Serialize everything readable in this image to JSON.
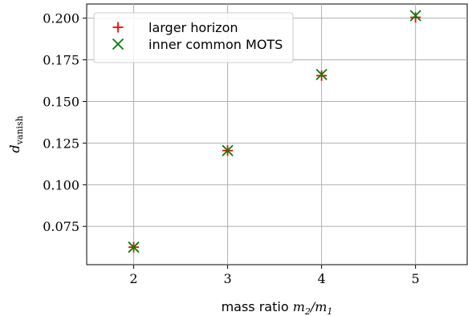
{
  "chart_data": {
    "type": "scatter",
    "title": "",
    "xlabel": {
      "text": "mass ratio ",
      "math": "m",
      "sub1": "2",
      "slash": "/",
      "math2": "m",
      "sub2": "1"
    },
    "ylabel": {
      "math": "d",
      "sub": "vanish"
    },
    "xlim": [
      1.5,
      5.55
    ],
    "ylim": [
      0.052,
      0.2085
    ],
    "xticks": [
      2,
      3,
      4,
      5
    ],
    "xtick_labels": [
      "2",
      "3",
      "4",
      "5"
    ],
    "yticks": [
      0.075,
      0.1,
      0.125,
      0.15,
      0.175,
      0.2
    ],
    "ytick_labels": [
      "0.075",
      "0.100",
      "0.125",
      "0.150",
      "0.175",
      "0.200"
    ],
    "grid": true,
    "legend_position": "top-left",
    "series": [
      {
        "name": "larger horizon",
        "marker": "plus",
        "color": "#ff0000",
        "x": [
          2,
          3,
          4,
          5
        ],
        "y": [
          0.0625,
          0.1205,
          0.1655,
          0.2005
        ]
      },
      {
        "name": "inner common MOTS",
        "marker": "x",
        "color": "#008000",
        "x": [
          2,
          3,
          4,
          5
        ],
        "y": [
          0.0625,
          0.1205,
          0.1662,
          0.2015
        ]
      }
    ]
  }
}
